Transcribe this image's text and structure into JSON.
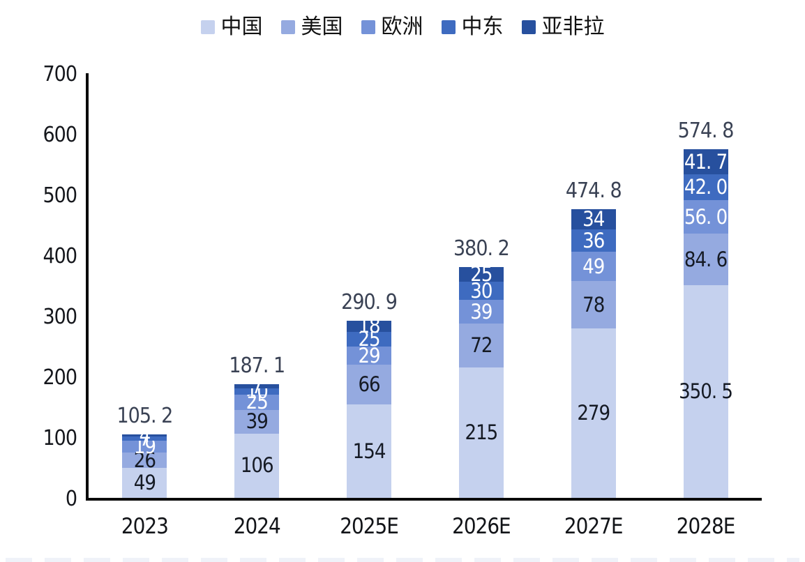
{
  "chart_data": {
    "type": "bar",
    "stacked": true,
    "title": "",
    "xlabel": "",
    "ylabel": "",
    "grid": false,
    "legend_position": "top",
    "ylim": [
      0,
      700
    ],
    "yticks": [
      "0",
      "100",
      "200",
      "300",
      "400",
      "500",
      "600",
      "700"
    ],
    "categories": [
      "2023",
      "2024",
      "2025E",
      "2026E",
      "2027E",
      "2028E"
    ],
    "series": [
      {
        "name": "中国",
        "color": "#c5d1ee",
        "label_color": "#151a24",
        "values": [
          49,
          106,
          154,
          215,
          279,
          350.5
        ],
        "labels": [
          "49",
          "106",
          "154",
          "215",
          "279",
          "350. 5"
        ]
      },
      {
        "name": "美国",
        "color": "#95aae0",
        "label_color": "#151a24",
        "values": [
          26,
          39,
          66,
          72,
          78,
          84.6
        ],
        "labels": [
          "26",
          "39",
          "66",
          "72",
          "78",
          "84. 6"
        ]
      },
      {
        "name": "欧洲",
        "color": "#7492d8",
        "label_color": "#ffffff",
        "values": [
          19,
          25,
          29,
          39,
          49,
          56.0
        ],
        "labels": [
          "19",
          "25",
          "29",
          "39",
          "49",
          "56. 0"
        ]
      },
      {
        "name": "中东",
        "color": "#3e6bc0",
        "label_color": "#ffffff",
        "values": [
          7,
          10,
          25,
          30,
          36,
          42.0
        ],
        "labels": [
          "7",
          "10",
          "25",
          "30",
          "36",
          "42. 0"
        ]
      },
      {
        "name": "亚非拉",
        "color": "#27509e",
        "label_color": "#ffffff",
        "values": [
          4,
          7,
          18,
          25,
          34,
          41.7
        ],
        "labels": [
          "4",
          "7",
          "18",
          "25",
          "34",
          "41. 7"
        ]
      }
    ],
    "totals": [
      105.2,
      187.1,
      290.9,
      380.2,
      474.8,
      574.8
    ],
    "totals_display": [
      "105. 2",
      "187. 1",
      "290. 9",
      "380. 2",
      "474. 8",
      "574. 8"
    ],
    "colors": {
      "axis": "#0a0a0a",
      "total_label": "#3a4254",
      "tick_label": "#15171c",
      "background": "#ffffff"
    }
  }
}
